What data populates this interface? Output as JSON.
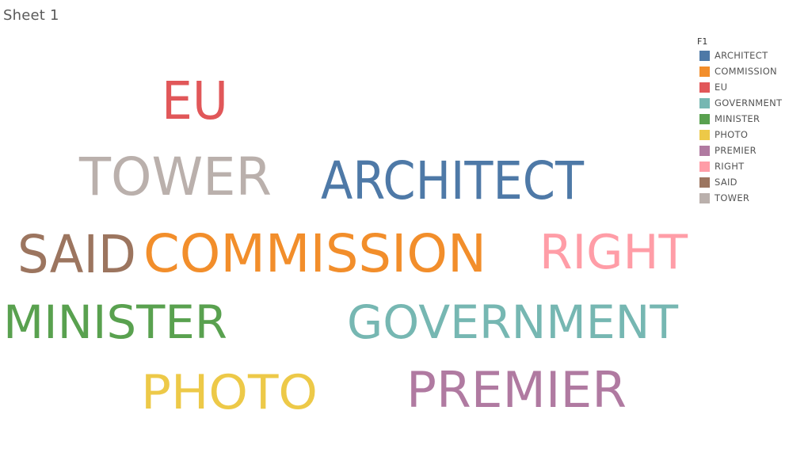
{
  "sheet": {
    "title": "Sheet 1"
  },
  "legend": {
    "title": "F1"
  },
  "chart_data": {
    "type": "word-cloud",
    "title": "",
    "legend_title": "F1",
    "legend_position": "top-right",
    "grid": false,
    "words": [
      {
        "text": "ARCHITECT",
        "color": "#4e79a7",
        "size_rank": 4
      },
      {
        "text": "COMMISSION",
        "color": "#f28e2b",
        "size_rank": 1
      },
      {
        "text": "EU",
        "color": "#e15759",
        "size_rank": 5
      },
      {
        "text": "GOVERNMENT",
        "color": "#76b7b2",
        "size_rank": 7
      },
      {
        "text": "MINISTER",
        "color": "#59a14f",
        "size_rank": 9
      },
      {
        "text": "PHOTO",
        "color": "#edc948",
        "size_rank": 10
      },
      {
        "text": "PREMIER",
        "color": "#b07aa1",
        "size_rank": 8
      },
      {
        "text": "RIGHT",
        "color": "#ff9da7",
        "size_rank": 6
      },
      {
        "text": "SAID",
        "color": "#9c755f",
        "size_rank": 2
      },
      {
        "text": "TOWER",
        "color": "#bab0ac",
        "size_rank": 3
      }
    ]
  }
}
